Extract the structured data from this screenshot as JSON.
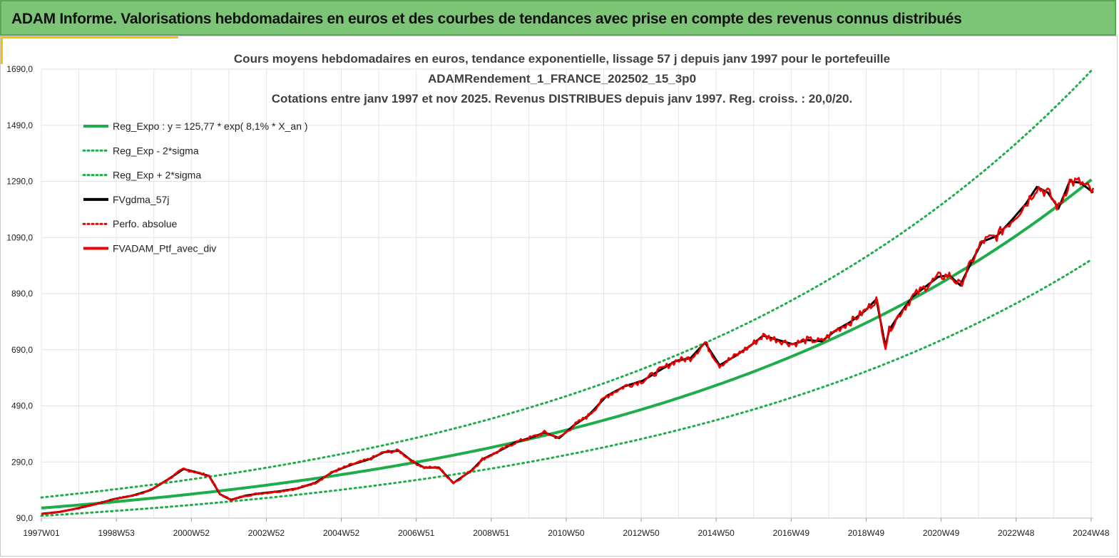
{
  "header": {
    "title": "ADAM Informe. Valorisations hebdomadaires en euros et des courbes de tendances avec prise en compte des revenus connus distribués"
  },
  "colors": {
    "banner": "#7cc576",
    "green": "#1fad4b",
    "red": "#ee0000",
    "black": "#000000"
  },
  "chart_data": {
    "type": "line",
    "title_lines": [
      "Cours moyens hebdomadaires  en euros, tendance exponentielle, lissage 57 j depuis janv 1997 pour le portefeuille",
      "ADAMRendement_1_FRANCE_202502_15_3p0",
      "Cotations  entre janv 1997 et nov 2025. Revenus DISTRIBUES depuis janv 1997. Reg. croiss. : 20,0/20."
    ],
    "y_ticks": [
      "90,0",
      "290,0",
      "490,0",
      "690,0",
      "890,0",
      "1090,0",
      "1290,0",
      "1490,0",
      "1690,0"
    ],
    "ylim": [
      90,
      1690
    ],
    "x_ticks": [
      "1997W01",
      "1998W53",
      "2000W52",
      "2002W52",
      "2004W52",
      "2006W51",
      "2008W51",
      "2010W50",
      "2012W50",
      "2014W50",
      "2016W49",
      "2018W49",
      "2020W49",
      "2022W48",
      "2024W48"
    ],
    "x_years_start": 1997.0,
    "x_years_end": 2025.85,
    "legend": [
      {
        "label": "Reg_Expo : y = 125,77 * exp( 8,1% *  X_an )",
        "color": "#1fad4b",
        "style": "solid"
      },
      {
        "label": "Reg_Exp - 2*sigma",
        "color": "#1fad4b",
        "style": "dotted"
      },
      {
        "label": "Reg_Exp + 2*sigma",
        "color": "#1fad4b",
        "style": "dotted"
      },
      {
        "label": "FVgdma_57j",
        "color": "#000000",
        "style": "solid"
      },
      {
        "label": "Perfo. absolue",
        "color": "#ee0000",
        "style": "dotted"
      },
      {
        "label": "FVADAM_Ptf_avec_div",
        "color": "#ee0000",
        "style": "solid"
      }
    ],
    "regression": {
      "a": 125.77,
      "rate": 0.081,
      "upper_factor": 1.3,
      "lower_factor": 0.78
    },
    "series": [
      {
        "name": "FVADAM_Ptf_avec_div",
        "x": [
          1997.0,
          1997.5,
          1998.0,
          1998.5,
          1999.0,
          1999.5,
          2000.0,
          2000.5,
          2000.9,
          2001.2,
          2001.6,
          2001.9,
          2002.2,
          2002.6,
          2003.0,
          2003.5,
          2004.0,
          2004.5,
          2005.0,
          2005.5,
          2006.0,
          2006.4,
          2006.8,
          2007.2,
          2007.5,
          2007.9,
          2008.3,
          2008.8,
          2009.1,
          2009.5,
          2010.0,
          2010.5,
          2010.8,
          2011.2,
          2011.6,
          2012.0,
          2012.5,
          2013.0,
          2013.5,
          2014.0,
          2014.4,
          2014.8,
          2015.2,
          2015.6,
          2016.0,
          2016.4,
          2016.8,
          2017.2,
          2017.6,
          2018.0,
          2018.4,
          2018.8,
          2019.2,
          2019.6,
          2019.9,
          2020.15,
          2020.25,
          2020.5,
          2020.9,
          2021.3,
          2021.6,
          2021.9,
          2022.2,
          2022.5,
          2022.8,
          2023.2,
          2023.6,
          2024.0,
          2024.3,
          2024.6,
          2024.9,
          2025.2,
          2025.5,
          2025.85
        ],
        "values": [
          105,
          112,
          125,
          140,
          158,
          170,
          190,
          230,
          265,
          255,
          240,
          175,
          155,
          170,
          178,
          185,
          195,
          215,
          255,
          280,
          300,
          325,
          330,
          290,
          270,
          270,
          215,
          260,
          300,
          325,
          360,
          380,
          395,
          375,
          420,
          455,
          525,
          560,
          580,
          620,
          650,
          660,
          715,
          635,
          665,
          700,
          740,
          725,
          710,
          725,
          720,
          760,
          790,
          830,
          870,
          700,
          760,
          810,
          880,
          920,
          950,
          955,
          920,
          1000,
          1075,
          1095,
          1150,
          1210,
          1270,
          1250,
          1195,
          1290,
          1285,
          1250
        ]
      }
    ]
  }
}
